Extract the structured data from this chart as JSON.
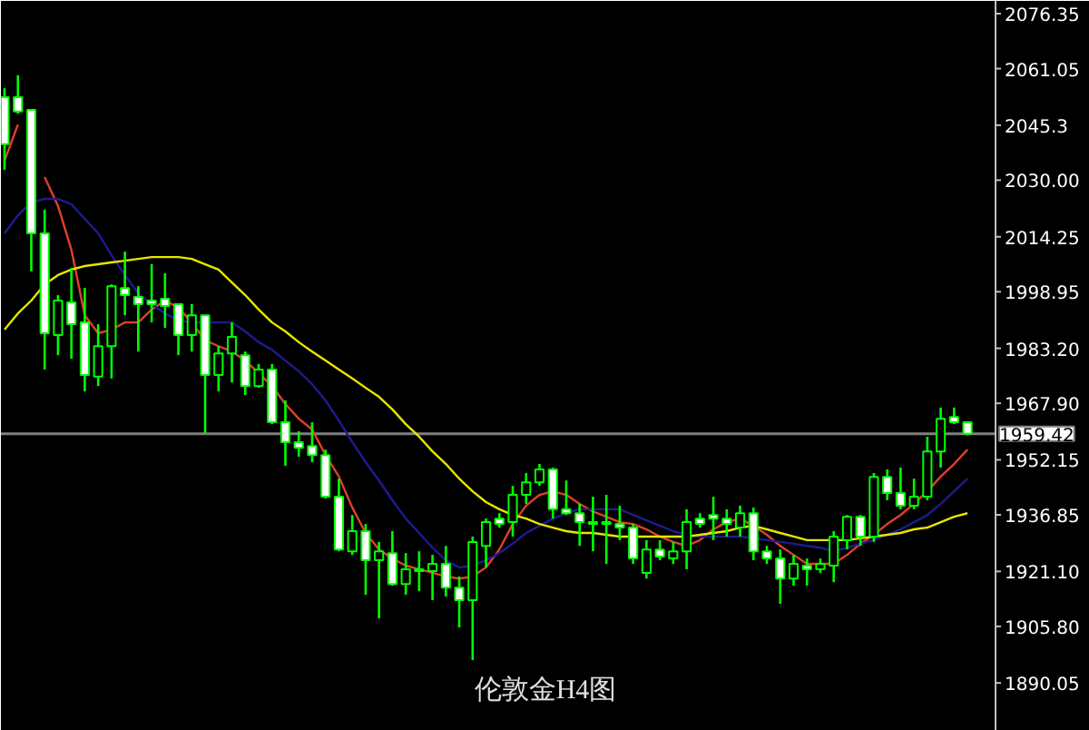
{
  "chart_data": {
    "type": "candlestick",
    "title": "伦敦金H4图",
    "categories": [
      null,
      null,
      null,
      null,
      null,
      null,
      null,
      null,
      null,
      null,
      null,
      null,
      null,
      null,
      null,
      null,
      null,
      null,
      null,
      null,
      null,
      null,
      null,
      null,
      null,
      null,
      null,
      null,
      null,
      null,
      null,
      null,
      null,
      null,
      null,
      null,
      null,
      null,
      null,
      null,
      null,
      null,
      null,
      null,
      null,
      null,
      null,
      null,
      null,
      null,
      null,
      null,
      null,
      null,
      null,
      null,
      null,
      null,
      null,
      null,
      null,
      null,
      null,
      null,
      null,
      null,
      null,
      null,
      null,
      null,
      null,
      null,
      null
    ],
    "ohlc": [
      [
        2053.1,
        2055.6,
        2032.9,
        2040.0
      ],
      [
        2053.1,
        2059.2,
        2048.5,
        2049.1
      ],
      [
        2049.6,
        2049.6,
        2004.6,
        2015.2
      ],
      [
        2015.2,
        2021.8,
        1977.3,
        1987.4
      ],
      [
        1986.9,
        1998.0,
        1981.3,
        1996.5
      ],
      [
        1996.0,
        2005.6,
        1980.3,
        1989.9
      ],
      [
        1990.4,
        2000.0,
        1971.2,
        1975.8
      ],
      [
        1975.3,
        1989.9,
        1972.7,
        1983.8
      ],
      [
        1983.8,
        2001.0,
        1974.8,
        2000.5
      ],
      [
        2000.0,
        2010.1,
        1992.4,
        1998.0
      ],
      [
        1997.5,
        2000.5,
        1982.3,
        1995.5
      ],
      [
        1996.5,
        2006.6,
        1990.4,
        1995.5
      ],
      [
        1997.0,
        2004.1,
        1988.9,
        1995.0
      ],
      [
        1995.5,
        1995.5,
        1981.3,
        1986.9
      ],
      [
        1986.9,
        1995.5,
        1982.3,
        1992.4
      ],
      [
        1992.4,
        1992.4,
        1959.6,
        1975.8
      ],
      [
        1975.8,
        1983.8,
        1971.2,
        1981.8
      ],
      [
        1981.8,
        1990.4,
        1973.7,
        1986.4
      ],
      [
        1981.3,
        1982.3,
        1970.2,
        1972.7
      ],
      [
        1972.7,
        1978.8,
        1972.2,
        1977.3
      ],
      [
        1977.3,
        1978.8,
        1962.1,
        1962.6
      ],
      [
        1962.6,
        1968.7,
        1950.5,
        1957.1
      ],
      [
        1957.1,
        1960.1,
        1953.0,
        1955.5
      ],
      [
        1956.0,
        1962.6,
        1951.5,
        1953.5
      ],
      [
        1953.5,
        1955.0,
        1941.4,
        1941.9
      ],
      [
        1941.9,
        1946.9,
        1926.7,
        1927.2
      ],
      [
        1926.7,
        1936.8,
        1925.7,
        1932.3
      ],
      [
        1932.3,
        1934.3,
        1914.6,
        1924.2
      ],
      [
        1924.2,
        1929.3,
        1908.0,
        1926.7
      ],
      [
        1926.2,
        1932.3,
        1917.1,
        1917.6
      ],
      [
        1917.6,
        1926.2,
        1914.6,
        1921.7
      ],
      [
        1921.7,
        1926.7,
        1915.6,
        1921.2
      ],
      [
        1921.2,
        1925.7,
        1913.1,
        1923.2
      ],
      [
        1923.2,
        1928.2,
        1914.1,
        1916.6
      ],
      [
        1916.6,
        1919.7,
        1905.5,
        1913.1
      ],
      [
        1913.1,
        1930.8,
        1896.4,
        1929.3
      ],
      [
        1928.2,
        1935.8,
        1922.2,
        1934.8
      ],
      [
        1935.8,
        1937.3,
        1933.3,
        1934.3
      ],
      [
        1934.8,
        1944.9,
        1930.8,
        1942.4
      ],
      [
        1942.4,
        1948.5,
        1939.9,
        1945.9
      ],
      [
        1945.9,
        1951.0,
        1944.9,
        1949.5
      ],
      [
        1949.5,
        1950.0,
        1935.8,
        1938.4
      ],
      [
        1938.4,
        1946.4,
        1936.8,
        1937.3
      ],
      [
        1937.3,
        1939.9,
        1928.2,
        1934.8
      ],
      [
        1934.8,
        1941.9,
        1926.7,
        1934.3
      ],
      [
        1934.8,
        1942.4,
        1923.2,
        1934.3
      ],
      [
        1934.3,
        1939.4,
        1929.8,
        1933.3
      ],
      [
        1933.3,
        1934.3,
        1923.2,
        1924.7
      ],
      [
        1920.7,
        1929.8,
        1919.1,
        1927.2
      ],
      [
        1927.2,
        1929.8,
        1924.2,
        1925.2
      ],
      [
        1924.7,
        1929.3,
        1923.2,
        1926.7
      ],
      [
        1926.7,
        1938.4,
        1921.7,
        1934.8
      ],
      [
        1935.8,
        1937.3,
        1933.3,
        1934.3
      ],
      [
        1936.8,
        1941.9,
        1929.8,
        1935.8
      ],
      [
        1935.8,
        1938.4,
        1930.8,
        1934.3
      ],
      [
        1933.3,
        1939.4,
        1930.8,
        1937.3
      ],
      [
        1937.3,
        1938.9,
        1924.2,
        1926.7
      ],
      [
        1926.7,
        1928.2,
        1923.2,
        1924.7
      ],
      [
        1924.7,
        1927.2,
        1912.1,
        1919.1
      ],
      [
        1919.1,
        1925.7,
        1917.1,
        1923.2
      ],
      [
        1922.7,
        1924.7,
        1917.1,
        1921.7
      ],
      [
        1921.7,
        1924.7,
        1920.7,
        1923.2
      ],
      [
        1922.7,
        1932.3,
        1918.1,
        1930.8
      ],
      [
        1929.8,
        1936.8,
        1927.2,
        1936.3
      ],
      [
        1936.3,
        1936.8,
        1928.2,
        1930.8
      ],
      [
        1930.8,
        1948.5,
        1929.3,
        1947.4
      ],
      [
        1947.4,
        1949.5,
        1940.9,
        1942.9
      ],
      [
        1942.9,
        1950.0,
        1938.4,
        1939.4
      ],
      [
        1939.4,
        1946.9,
        1938.4,
        1941.9
      ],
      [
        1941.9,
        1958.6,
        1940.9,
        1954.5
      ],
      [
        1954.5,
        1966.7,
        1950.0,
        1963.6
      ],
      [
        1964.1,
        1966.7,
        1962.1,
        1962.6
      ],
      [
        1962.6,
        1962.6,
        1959.0,
        1959.42
      ]
    ],
    "color": "#00ff00",
    "series": [
      {
        "type": "line",
        "color": "#e0402a",
        "values": [
          2035.4,
          2045.5,
          null,
          2030.9,
          2022.8,
          2010.6,
          1992.4,
          1987.4,
          1988.4,
          1990.4,
          1990.4,
          1994.0,
          1996.5,
          1994.5,
          1990.4,
          1985.4,
          1983.8,
          1982.3,
          1979.8,
          1976.3,
          1972.7,
          1967.7,
          1963.6,
          1960.6,
          1953.5,
          1947.5,
          1938.9,
          1931.8,
          1927.2,
          1924.7,
          1922.7,
          1921.7,
          1920.7,
          1919.7,
          1919.1,
          1919.7,
          1922.2,
          1927.2,
          1934.3,
          1939.4,
          1942.4,
          1943.4,
          1942.4,
          1939.9,
          1937.8,
          1936.3,
          1934.8,
          1934.3,
          1932.8,
          1930.8,
          1929.3,
          1928.2,
          1929.8,
          1932.8,
          1934.8,
          1935.8,
          1933.8,
          1931.3,
          1928.2,
          1925.7,
          1923.2,
          1923.2,
          1923.2,
          1925.7,
          1928.8,
          1931.3,
          1934.3,
          1936.8,
          1939.9,
          1943.4,
          1947.5,
          1951.0,
          1955.0
        ]
      },
      {
        "type": "line",
        "color": "#1c1c8f",
        "values": [
          2015.2,
          2020.2,
          2023.8,
          2024.8,
          2024.8,
          2023.3,
          2019.2,
          2015.2,
          2009.1,
          2003.6,
          1998.5,
          1995.5,
          1992.9,
          1990.9,
          1990.4,
          1990.4,
          1990.4,
          1990.4,
          1987.9,
          1984.9,
          1982.8,
          1979.8,
          1976.8,
          1973.2,
          1968.7,
          1963.1,
          1957.1,
          1951.5,
          1946.4,
          1940.9,
          1935.8,
          1931.8,
          1927.7,
          1924.2,
          1922.2,
          1922.7,
          1924.2,
          1926.2,
          1928.8,
          1931.8,
          1933.8,
          1935.8,
          1937.3,
          1938.4,
          1938.4,
          1938.4,
          1938.4,
          1936.8,
          1935.3,
          1933.8,
          1932.3,
          1931.3,
          1930.8,
          1930.8,
          1930.8,
          1930.8,
          1930.3,
          1929.8,
          1929.3,
          1928.8,
          1928.2,
          1927.7,
          1926.7,
          1927.7,
          1928.8,
          1929.8,
          1931.3,
          1932.8,
          1934.8,
          1936.8,
          1939.9,
          1943.4,
          1946.9
        ]
      },
      {
        "type": "line",
        "color": "#e6e600",
        "values": [
          1988.4,
          1992.9,
          1996.5,
          2001.0,
          2003.6,
          2005.1,
          2006.1,
          2006.6,
          2007.1,
          2007.6,
          2008.1,
          2008.6,
          2008.6,
          2008.6,
          2008.1,
          2006.6,
          2005.1,
          2001.5,
          1998.0,
          1994.0,
          1990.4,
          1987.9,
          1984.9,
          1982.3,
          1979.8,
          1977.3,
          1974.8,
          1972.2,
          1969.7,
          1966.2,
          1962.1,
          1958.6,
          1954.5,
          1951.0,
          1946.9,
          1943.4,
          1940.4,
          1938.4,
          1936.8,
          1935.8,
          1934.3,
          1933.3,
          1932.3,
          1931.8,
          1931.8,
          1931.3,
          1930.8,
          1930.8,
          1930.8,
          1930.8,
          1930.8,
          1930.8,
          1931.3,
          1931.8,
          1932.3,
          1933.3,
          1933.8,
          1932.8,
          1931.8,
          1930.8,
          1929.8,
          1929.8,
          1929.8,
          1929.8,
          1930.3,
          1930.8,
          1931.3,
          1931.8,
          1932.8,
          1933.3,
          1934.8,
          1936.3,
          1937.3
        ]
      }
    ],
    "ylim": [
      1876.7,
      2079.9
    ],
    "yticks": [
      2076.35,
      2061.05,
      2045.3,
      {
        "value": 2030,
        "label": "2030.00"
      },
      2014.25,
      1998.95,
      {
        "value": 1983.2,
        "label": "1983.20"
      },
      {
        "value": 1967.9,
        "label": "1967.90"
      },
      1952.15,
      1936.85,
      {
        "value": 1921.1,
        "label": "1921.10"
      },
      {
        "value": 1905.8,
        "label": "1905.80"
      },
      1890.05
    ],
    "ref_lines": [
      {
        "axis": "y",
        "value": 1959.42,
        "label": "1959.42",
        "color": "#808080"
      }
    ],
    "tick_labels": "y"
  }
}
